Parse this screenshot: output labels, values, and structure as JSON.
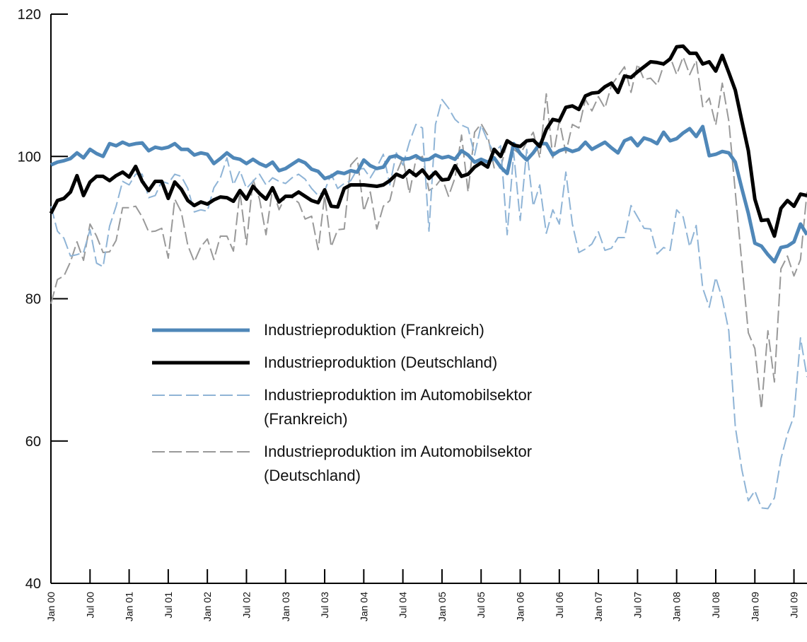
{
  "chart_data": {
    "type": "line",
    "categories": [
      "Jan 00",
      null,
      null,
      null,
      null,
      null,
      "Jul 00",
      null,
      null,
      null,
      null,
      null,
      "Jan 01",
      null,
      null,
      null,
      null,
      null,
      "Jul 01",
      null,
      null,
      null,
      null,
      null,
      "Jan 02",
      null,
      null,
      null,
      null,
      null,
      "Jul 02",
      null,
      null,
      null,
      null,
      null,
      "Jan 03",
      null,
      null,
      null,
      null,
      null,
      "Jul 03",
      null,
      null,
      null,
      null,
      null,
      "Jan 04",
      null,
      null,
      null,
      null,
      null,
      "Jul 04",
      null,
      null,
      null,
      null,
      null,
      "Jan 05",
      null,
      null,
      null,
      null,
      null,
      "Jul 05",
      null,
      null,
      null,
      null,
      null,
      "Jan 06",
      null,
      null,
      null,
      null,
      null,
      "Jul 06",
      null,
      null,
      null,
      null,
      null,
      "Jan 07",
      null,
      null,
      null,
      null,
      null,
      "Jul 07",
      null,
      null,
      null,
      null,
      null,
      "Jan 08",
      null,
      null,
      null,
      null,
      null,
      "Jul 08",
      null,
      null,
      null,
      null,
      null,
      "Jan 09",
      null,
      null,
      null,
      null,
      null,
      "Jul 09",
      null,
      null
    ],
    "ylim": [
      40,
      120
    ],
    "yticks": [
      40,
      60,
      80,
      100,
      120
    ],
    "series": [
      {
        "name": "Industrieproduktion (Frankreich)",
        "color": "#4f87b8",
        "style": "solid",
        "values": [
          98.8,
          99.2,
          99.4,
          99.7,
          100.5,
          99.8,
          101,
          100.4,
          100,
          101.8,
          101.5,
          102,
          101.6,
          101.8,
          101.9,
          100.8,
          101.3,
          101.1,
          101.3,
          101.8,
          101,
          101,
          100.2,
          100.5,
          100.3,
          99,
          99.7,
          100.5,
          99.8,
          99.6,
          99,
          99.6,
          99,
          98.6,
          99.2,
          98,
          98.3,
          98.9,
          99.5,
          99.1,
          98.2,
          97.9,
          96.9,
          97.2,
          97.8,
          97.6,
          98,
          97.8,
          99.5,
          98.7,
          98.3,
          98.5,
          99.9,
          100.1,
          99.6,
          99.7,
          100.1,
          99.5,
          99.6,
          100.2,
          99.8,
          100,
          99.6,
          100.8,
          100.2,
          99.2,
          99.6,
          99.2,
          99.8,
          98.5,
          97.6,
          101.8,
          100.4,
          99.5,
          100.5,
          101.8,
          101.8,
          100.2,
          100.8,
          101.1,
          100.7,
          101,
          102,
          101,
          101.5,
          102,
          101.2,
          100.5,
          102.2,
          102.6,
          101.5,
          102.6,
          102.3,
          101.8,
          103.4,
          102.2,
          102.5,
          103.3,
          103.9,
          102.8,
          104.2,
          100.1,
          100.3,
          100.7,
          100.5,
          99.2,
          95.5,
          92,
          87.8,
          87.4,
          86.2,
          85.2,
          87.2,
          87.4,
          88,
          90.5,
          89
        ]
      },
      {
        "name": "Industrieproduktion (Deutschland)",
        "color": "#000000",
        "style": "solid",
        "values": [
          92,
          93.8,
          94.1,
          95,
          97.3,
          94.5,
          96.4,
          97.2,
          97.2,
          96.6,
          97.3,
          97.8,
          97.1,
          98.6,
          96.5,
          95.2,
          96.5,
          96.5,
          94.1,
          96.4,
          95.4,
          93.8,
          93.1,
          93.6,
          93.3,
          93.9,
          94.3,
          94.2,
          93.7,
          95.2,
          94,
          95.8,
          94.8,
          94,
          95.6,
          93.6,
          94.4,
          94.4,
          95,
          94.4,
          93.8,
          93.5,
          95.3,
          93,
          92.9,
          95.5,
          96,
          96,
          96,
          95.9,
          95.8,
          96,
          96.6,
          97.5,
          97.1,
          98,
          97.3,
          98.1,
          96.9,
          97.8,
          96.7,
          96.8,
          98.7,
          97.2,
          97.5,
          98.5,
          99.1,
          98.5,
          101,
          100,
          102.2,
          101.6,
          101.4,
          102.2,
          102.3,
          101.4,
          103.8,
          105.2,
          105,
          106.9,
          107.1,
          106.6,
          108.5,
          108.9,
          109,
          109.8,
          110.3,
          109,
          111.3,
          111.1,
          111.9,
          112.6,
          113.3,
          113.2,
          113,
          113.7,
          115.4,
          115.5,
          114.5,
          114.5,
          113,
          113.3,
          112,
          114.2,
          111.8,
          109.3,
          105,
          100.8,
          94,
          91,
          91.1,
          88.8,
          92.7,
          93.8,
          93,
          94.7,
          94.5
        ]
      },
      {
        "name": "Industrieproduktion im Automobilsektor (Frankreich)",
        "color": "#8fb4d6",
        "style": "dashed",
        "values": [
          93,
          89.5,
          88.5,
          86,
          86.2,
          86.5,
          89.7,
          85,
          84.5,
          90.2,
          93,
          96.5,
          96,
          97.5,
          97.5,
          94.2,
          94.5,
          96.5,
          96.2,
          97.5,
          97.2,
          95.5,
          92.2,
          92.5,
          92.3,
          95.6,
          97,
          99.8,
          96,
          98,
          95.5,
          96.5,
          97.5,
          96,
          97,
          96.5,
          96.2,
          97,
          97.5,
          96.8,
          95.5,
          94.5,
          95.2,
          97.5,
          95.5,
          96.2,
          96.6,
          98.2,
          98.3,
          97,
          98.5,
          100.3,
          96,
          100.5,
          98.8,
          102,
          104.5,
          104,
          89.5,
          104.5,
          108,
          106.8,
          105.2,
          104.4,
          104,
          100.2,
          104.4,
          102.2,
          100.5,
          101.5,
          89,
          100.5,
          91,
          101,
          93,
          96,
          89.2,
          92.5,
          90.5,
          97.8,
          90.5,
          86.5,
          87,
          87.7,
          89.4,
          86.8,
          87.1,
          88.6,
          88.6,
          93.1,
          91.5,
          89.9,
          89.8,
          86.3,
          87.2,
          86.8,
          92.5,
          91.5,
          87.3,
          90.3,
          81.5,
          78.8,
          83,
          80,
          75.5,
          62,
          56,
          51.6,
          53,
          50.6,
          50.5,
          52,
          57.5,
          61,
          63.5,
          74.5,
          69
        ]
      },
      {
        "name": "Industrieproduktion im Automobilsektor (Deutschland)",
        "color": "#999999",
        "style": "dashed",
        "values": [
          79.3,
          82.7,
          83.2,
          85.2,
          88,
          85.4,
          90.5,
          88.8,
          86.5,
          86.6,
          88.2,
          92.8,
          92.8,
          93,
          91.5,
          89.4,
          89.5,
          89.9,
          85.7,
          94,
          92.2,
          87.5,
          85.2,
          87.3,
          88.4,
          85.5,
          88.8,
          88.8,
          86.7,
          95,
          87.6,
          96.8,
          94,
          89,
          95.5,
          92.5,
          94.4,
          94.2,
          93.5,
          91.2,
          91.6,
          86.9,
          94.5,
          87.3,
          89.7,
          89.8,
          98.8,
          99.8,
          92.3,
          95,
          89.8,
          93,
          93.8,
          97.6,
          99.8,
          94.8,
          99.6,
          100,
          95.2,
          95.8,
          97,
          94.4,
          97,
          103,
          95,
          103.4,
          104.6,
          103,
          98.4,
          98.4,
          102,
          101,
          100.3,
          102,
          103.4,
          99.8,
          108.8,
          99.8,
          105,
          100.5,
          104.5,
          104,
          108,
          106.4,
          108.4,
          106.8,
          110,
          111.3,
          112.6,
          109,
          113,
          110.8,
          111,
          110,
          112.8,
          114,
          111.5,
          114,
          111.5,
          113.5,
          107,
          108.2,
          104.4,
          110.3,
          105,
          95,
          85,
          75.2,
          73,
          64.5,
          75.5,
          68.3,
          84.2,
          86,
          83.2,
          85.5,
          95
        ]
      }
    ]
  }
}
